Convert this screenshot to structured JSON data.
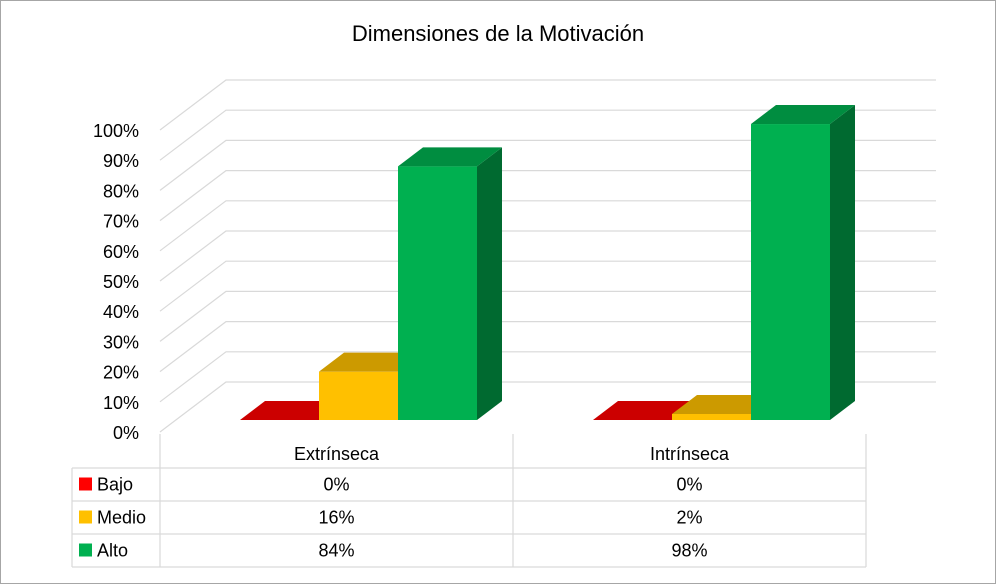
{
  "chart_data": {
    "type": "bar",
    "title": "Dimensiones de la Motivación",
    "categories": [
      "Extrínseca",
      "Intrínseca"
    ],
    "series": [
      {
        "name": "Bajo",
        "values": [
          0,
          0
        ],
        "color": "#ff0000",
        "data_labels": [
          "0%",
          "0%"
        ]
      },
      {
        "name": "Medio",
        "values": [
          16,
          2
        ],
        "color": "#ffc000",
        "data_labels": [
          "16%",
          "2%"
        ]
      },
      {
        "name": "Alto",
        "values": [
          84,
          98
        ],
        "color": "#00b050",
        "data_labels": [
          "84%",
          "98%"
        ]
      }
    ],
    "ylim": [
      0,
      100
    ],
    "y_ticks": [
      "0%",
      "10%",
      "20%",
      "30%",
      "40%",
      "50%",
      "60%",
      "70%",
      "80%",
      "90%",
      "100%"
    ],
    "grid": true,
    "legend": "data-table",
    "style": "3d-column"
  }
}
